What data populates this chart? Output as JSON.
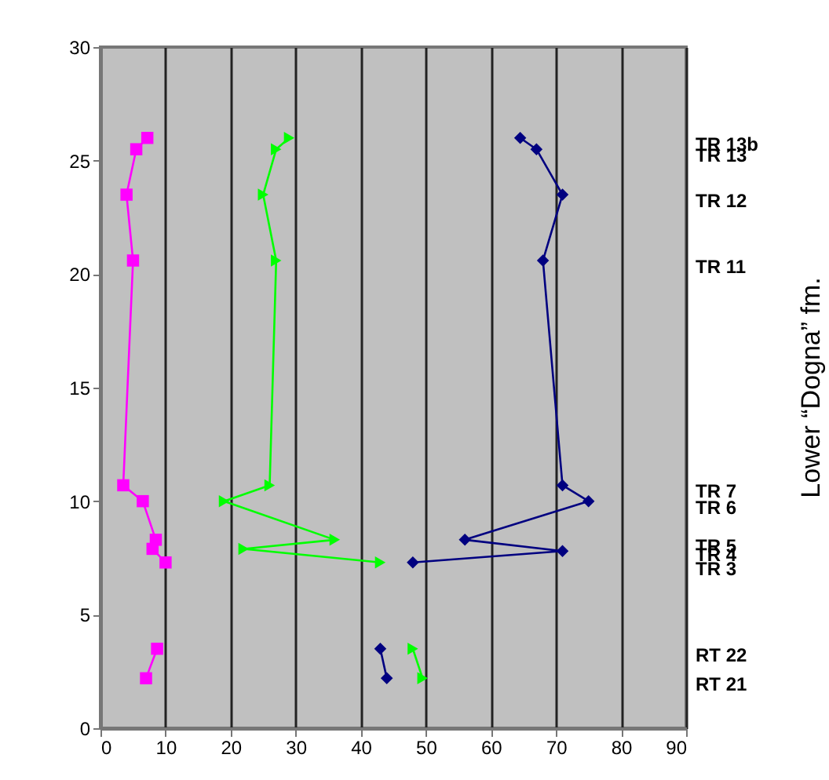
{
  "chart_data": {
    "type": "line",
    "ylabel": "Lower “Dogna” fm.",
    "annotations": [
      "TR 13b",
      "TR 13",
      "TR 12",
      "TR 11",
      "TR 7",
      "TR 6",
      "TR 5",
      "TR 4",
      "TR 3",
      "RT 22",
      "RT 21"
    ],
    "xlim": [
      0,
      90
    ],
    "xticks": [
      0,
      10,
      20,
      30,
      40,
      50,
      60,
      70,
      80,
      90
    ],
    "ylim": [
      0,
      30
    ],
    "yticks": [
      0,
      5,
      10,
      15,
      20,
      25,
      30
    ],
    "grid": "x",
    "series": [
      {
        "color": "#ff00ff",
        "marker": "square",
        "x": [
          7.2,
          5.5,
          4,
          5,
          3.5,
          6.5,
          8.5,
          8,
          10,
          null,
          8.7,
          7
        ],
        "values": [
          26,
          25.5,
          23.5,
          20.6,
          10.7,
          10,
          8.3,
          7.9,
          7.3,
          null,
          3.5,
          2.2
        ]
      },
      {
        "color": "#00ff00",
        "marker": "triangle",
        "x": [
          29,
          27,
          25,
          27,
          26,
          19,
          36,
          22,
          43,
          null,
          48,
          49.5
        ],
        "values": [
          26,
          25.5,
          23.5,
          20.6,
          10.7,
          10,
          8.3,
          7.9,
          7.3,
          null,
          3.5,
          2.2
        ]
      },
      {
        "color": "#000080",
        "marker": "diamond",
        "x": [
          64.5,
          67,
          71,
          68,
          71,
          75,
          56,
          71,
          48,
          null,
          43,
          44
        ],
        "values": [
          26,
          25.5,
          23.5,
          20.6,
          10.7,
          10,
          8.3,
          7.8,
          7.3,
          null,
          3.5,
          2.2
        ]
      }
    ]
  }
}
